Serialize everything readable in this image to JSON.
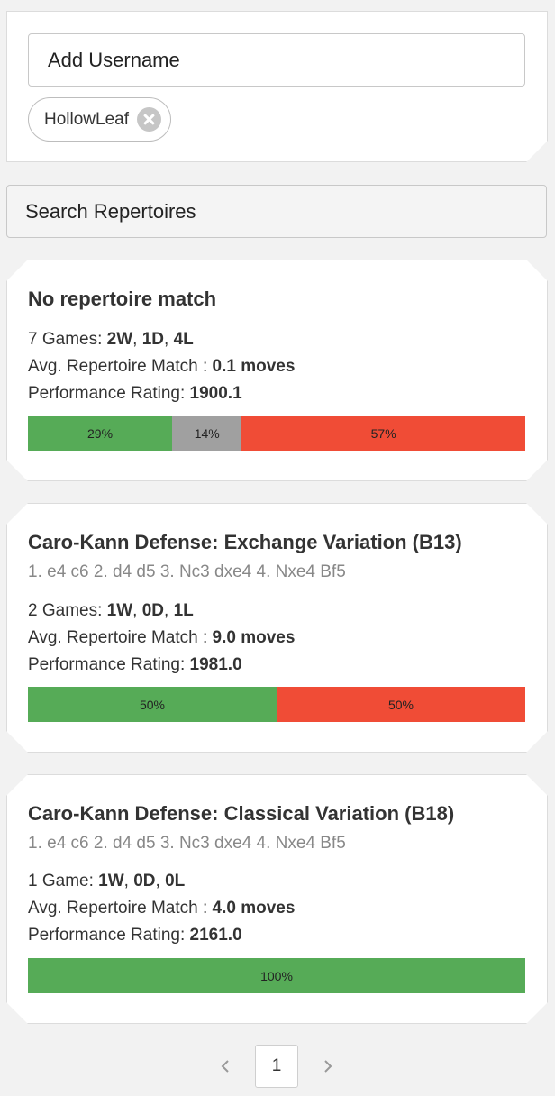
{
  "username": {
    "placeholder": "Add Username",
    "value": "",
    "chips": [
      {
        "label": "HollowLeaf",
        "icon": "close-circle-icon"
      }
    ]
  },
  "search": {
    "label": "Search Repertoires"
  },
  "repertoires": [
    {
      "title": "No repertoire match",
      "moves": "",
      "games_label": "7 Games: ",
      "wins": "2W",
      "draws": "1D",
      "losses": "4L",
      "match_label": "Avg. Repertoire Match : ",
      "match_value": "0.1 moves",
      "perf_label": "Performance Rating: ",
      "perf_value": "1900.1",
      "bar": [
        {
          "label": "29%",
          "value": 29,
          "color": "#56ab57"
        },
        {
          "label": "14%",
          "value": 14,
          "color": "#a0a0a0"
        },
        {
          "label": "57%",
          "value": 57,
          "color": "#f04c36"
        }
      ]
    },
    {
      "title": "Caro-Kann Defense: Exchange Variation (B13)",
      "moves": "1. e4 c6 2. d4 d5 3. Nc3 dxe4 4. Nxe4 Bf5",
      "games_label": "2 Games: ",
      "wins": "1W",
      "draws": "0D",
      "losses": "1L",
      "match_label": "Avg. Repertoire Match : ",
      "match_value": "9.0 moves",
      "perf_label": "Performance Rating: ",
      "perf_value": "1981.0",
      "bar": [
        {
          "label": "50%",
          "value": 50,
          "color": "#56ab57"
        },
        {
          "label": "50%",
          "value": 50,
          "color": "#f04c36"
        }
      ]
    },
    {
      "title": "Caro-Kann Defense: Classical Variation (B18)",
      "moves": "1. e4 c6 2. d4 d5 3. Nc3 dxe4 4. Nxe4 Bf5",
      "games_label": "1 Game: ",
      "wins": "1W",
      "draws": "0D",
      "losses": "0L",
      "match_label": "Avg. Repertoire Match : ",
      "match_value": "4.0 moves",
      "perf_label": "Performance Rating: ",
      "perf_value": "2161.0",
      "bar": [
        {
          "label": "100%",
          "value": 100,
          "color": "#56ab57"
        }
      ]
    }
  ],
  "pagination": {
    "current": "1",
    "prev_icon": "chevron-left-icon",
    "next_icon": "chevron-right-icon"
  }
}
